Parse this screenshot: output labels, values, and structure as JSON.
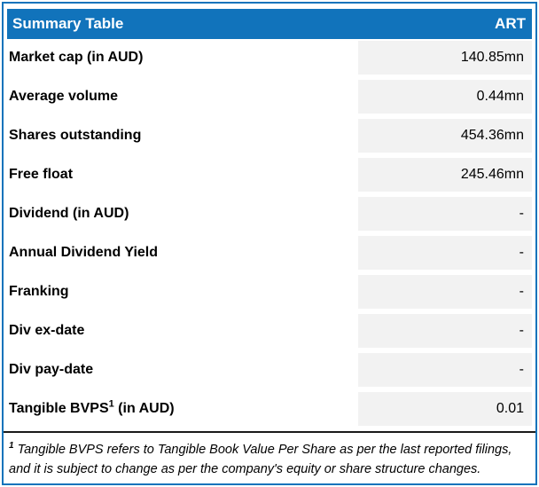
{
  "header": {
    "title": "Summary Table",
    "ticker": "ART"
  },
  "colors": {
    "accent_blue": "#1173BB",
    "value_bg": "#F2F2F2",
    "rule_color": "#1A1A1A",
    "text_color": "#000000"
  },
  "rows": [
    {
      "label": "Market cap (in AUD)",
      "sup": "",
      "suffix": "",
      "value": "140.85mn"
    },
    {
      "label": "Average volume",
      "sup": "",
      "suffix": "",
      "value": "0.44mn"
    },
    {
      "label": "Shares outstanding",
      "sup": "",
      "suffix": "",
      "value": "454.36mn"
    },
    {
      "label": "Free float",
      "sup": "",
      "suffix": "",
      "value": "245.46mn"
    },
    {
      "label": "Dividend (in AUD)",
      "sup": "",
      "suffix": "",
      "value": "-"
    },
    {
      "label": "Annual Dividend Yield",
      "sup": "",
      "suffix": "",
      "value": "-"
    },
    {
      "label": "Franking",
      "sup": "",
      "suffix": "",
      "value": "-"
    },
    {
      "label": "Div ex-date",
      "sup": "",
      "suffix": "",
      "value": "-"
    },
    {
      "label": "Div pay-date",
      "sup": "",
      "suffix": "",
      "value": "-"
    },
    {
      "label": "Tangible BVPS",
      "sup": "1",
      "suffix": " (in AUD)",
      "value": "0.01"
    }
  ],
  "footnote": {
    "superscript": "1",
    "lines": [
      "Tangible BVPS refers to Tangible Book Value Per Share as per the last reported filings,",
      "and it is subject to change as per the company's equity or share structure changes."
    ]
  }
}
